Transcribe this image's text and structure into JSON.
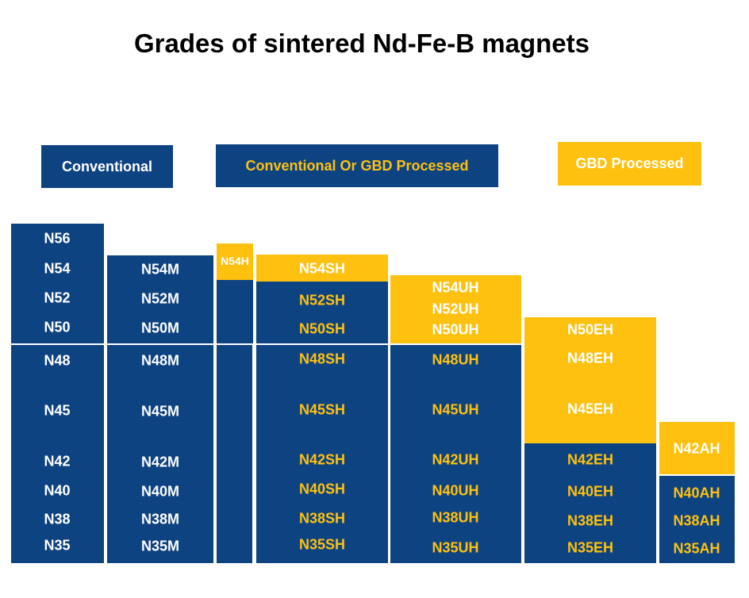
{
  "title": "Grades of sintered Nd-Fe-B magnets",
  "legend": {
    "conventional": "Conventional",
    "either": "Conventional Or GBD Processed",
    "gbd": "GBD Processed"
  },
  "colors": {
    "blue": "#0e4382",
    "yellow": "#fec10f",
    "white": "#ffffff"
  },
  "columns": [
    {
      "grades": [
        "N56",
        "N54",
        "N52",
        "N50",
        "N48",
        "N45",
        "N42",
        "N40",
        "N38",
        "N35"
      ]
    },
    {
      "grades": [
        "N54M",
        "N52M",
        "N50M",
        "N48M",
        "N45M",
        "N42M",
        "N40M",
        "N38M",
        "N35M"
      ]
    },
    {
      "grades": [
        "N54H"
      ]
    },
    {
      "grades": [
        "N54SH",
        "N52SH",
        "N50SH",
        "N48SH",
        "N45SH",
        "N42SH",
        "N40SH",
        "N38SH",
        "N35SH"
      ]
    },
    {
      "grades": [
        "N54UH",
        "N52UH",
        "N50UH",
        "N48UH",
        "N45UH",
        "N42UH",
        "N40UH",
        "N38UH",
        "N35UH"
      ]
    },
    {
      "grades": [
        "N50EH",
        "N48EH",
        "N45EH",
        "N42EH",
        "N40EH",
        "N38EH",
        "N35EH"
      ]
    },
    {
      "grades": [
        "N42AH",
        "N40AH",
        "N38AH",
        "N35AH"
      ]
    }
  ]
}
